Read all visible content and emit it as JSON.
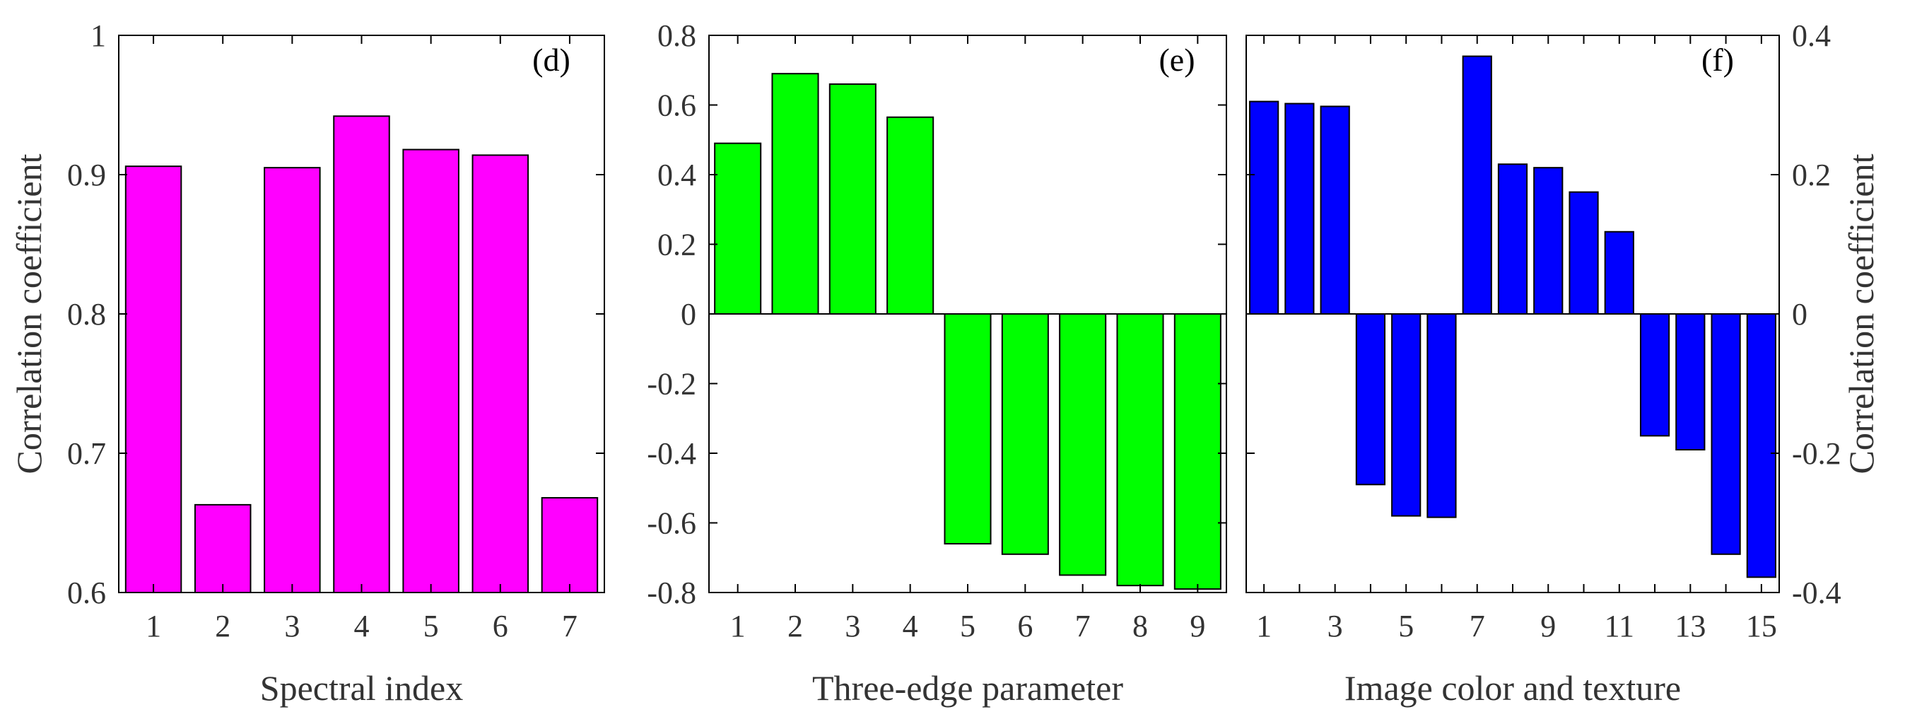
{
  "colors": {
    "d": "#FF00FF",
    "e": "#00FF00",
    "f": "#0000FF",
    "stroke": "#000000",
    "text": "#333333"
  },
  "chart_data": [
    {
      "id": "d",
      "type": "bar",
      "panel_label": "(d)",
      "xlabel": "Spectral index",
      "ylabel": "Correlation coefficient",
      "ylim": [
        0.6,
        1.0
      ],
      "yticks": [
        0.6,
        0.7,
        0.8,
        0.9,
        1
      ],
      "ytick_labels": [
        "0.6",
        "0.7",
        "0.8",
        "0.9",
        "1"
      ],
      "x": [
        1,
        2,
        3,
        4,
        5,
        6,
        7
      ],
      "xtick_labels": [
        "1",
        "2",
        "3",
        "4",
        "5",
        "6",
        "7"
      ],
      "values": [
        0.906,
        0.663,
        0.905,
        0.942,
        0.918,
        0.914,
        0.668
      ],
      "color": "#FF00FF"
    },
    {
      "id": "e",
      "type": "bar",
      "panel_label": "(e)",
      "xlabel": "Three-edge parameter",
      "ylabel": "",
      "ylim": [
        -0.8,
        0.8
      ],
      "yticks": [
        -0.8,
        -0.6,
        -0.4,
        -0.2,
        0,
        0.2,
        0.4,
        0.6,
        0.8
      ],
      "ytick_labels": [
        "-0.8",
        "-0.6",
        "-0.4",
        "-0.2",
        "0",
        "0.2",
        "0.4",
        "0.6",
        "0.8"
      ],
      "x": [
        1,
        2,
        3,
        4,
        5,
        6,
        7,
        8,
        9
      ],
      "xtick_labels": [
        "1",
        "2",
        "3",
        "4",
        "5",
        "6",
        "7",
        "8",
        "9"
      ],
      "values": [
        0.49,
        0.69,
        0.66,
        0.565,
        -0.66,
        -0.69,
        -0.75,
        -0.78,
        -0.79
      ],
      "color": "#00FF00"
    },
    {
      "id": "f",
      "type": "bar",
      "panel_label": "(f)",
      "xlabel": "Image color and texture",
      "ylabel": "Correlation coefficient",
      "ylim": [
        -0.4,
        0.4
      ],
      "yticks": [
        -0.4,
        -0.2,
        0,
        0.2,
        0.4
      ],
      "ytick_labels": [
        "-0.4",
        "-0.2",
        "0",
        "0.2",
        "0.4"
      ],
      "x": [
        1,
        2,
        3,
        4,
        5,
        6,
        7,
        8,
        9,
        10,
        11,
        12,
        13,
        14,
        15
      ],
      "xtick_labels": [
        "1",
        "3",
        "5",
        "7",
        "9",
        "11",
        "13",
        "15"
      ],
      "xtick_positions": [
        1,
        3,
        5,
        7,
        9,
        11,
        13,
        15
      ],
      "values": [
        0.305,
        0.302,
        0.298,
        -0.245,
        -0.29,
        -0.292,
        0.37,
        0.215,
        0.21,
        0.175,
        0.118,
        -0.175,
        -0.195,
        -0.345,
        -0.378
      ],
      "color": "#0000FF"
    }
  ]
}
